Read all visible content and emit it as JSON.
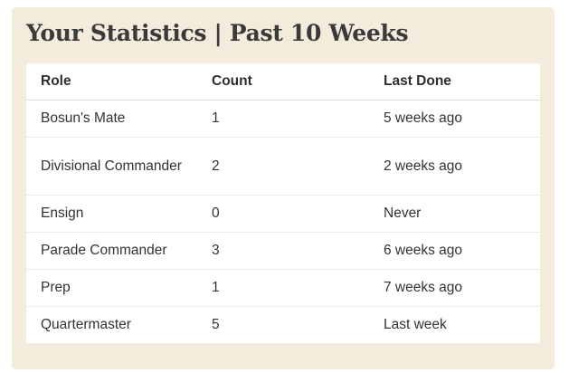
{
  "panel": {
    "title": "Your Statistics | Past 10 Weeks"
  },
  "table": {
    "headers": [
      "Role",
      "Count",
      "Last Done"
    ],
    "rows": [
      {
        "role": "Bosun's Mate",
        "count": "1",
        "last_done": "5 weeks ago"
      },
      {
        "role": "Divisional Commander",
        "count": "2",
        "last_done": "2 weeks ago"
      },
      {
        "role": "Ensign",
        "count": "0",
        "last_done": "Never"
      },
      {
        "role": "Parade Commander",
        "count": "3",
        "last_done": "6 weeks ago"
      },
      {
        "role": "Prep",
        "count": "1",
        "last_done": "7 weeks ago"
      },
      {
        "role": "Quartermaster",
        "count": "5",
        "last_done": "Last week"
      }
    ]
  },
  "colors": {
    "panel_background": "#f3ebdc",
    "table_background": "#ffffff",
    "title_text": "#3a3a3a"
  }
}
